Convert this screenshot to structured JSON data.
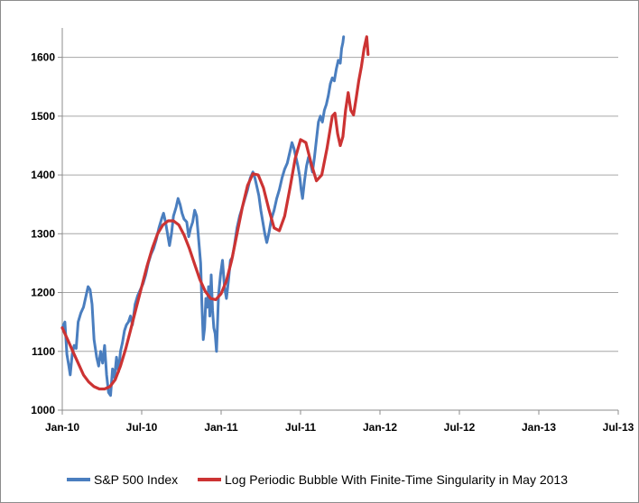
{
  "chart_data": {
    "type": "line",
    "title": "",
    "xlabel": "",
    "ylabel": "",
    "ylim": [
      1000,
      1650
    ],
    "y_ticks": [
      1000,
      1100,
      1200,
      1300,
      1400,
      1500,
      1600
    ],
    "y_tick_labels": [
      "1000",
      "1100",
      "1200",
      "1300",
      "1400",
      "1500",
      "1600"
    ],
    "x_tick_labels": [
      "Jan-10",
      "Jul-10",
      "Jan-11",
      "Jul-11",
      "Jan-12",
      "Jul-12",
      "Jan-13",
      "Jul-13"
    ],
    "grid": "horizontal",
    "legend_position": "bottom",
    "series": [
      {
        "name": "S&P 500 Index",
        "color": "#4a7ebf",
        "points": [
          [
            0,
            1140
          ],
          [
            0.2,
            1150
          ],
          [
            0.35,
            1095
          ],
          [
            0.5,
            1075
          ],
          [
            0.6,
            1060
          ],
          [
            0.75,
            1095
          ],
          [
            0.9,
            1110
          ],
          [
            1.05,
            1105
          ],
          [
            1.2,
            1150
          ],
          [
            1.4,
            1165
          ],
          [
            1.6,
            1175
          ],
          [
            1.8,
            1195
          ],
          [
            1.95,
            1210
          ],
          [
            2.1,
            1205
          ],
          [
            2.25,
            1180
          ],
          [
            2.4,
            1120
          ],
          [
            2.6,
            1090
          ],
          [
            2.75,
            1075
          ],
          [
            2.9,
            1100
          ],
          [
            3.05,
            1080
          ],
          [
            3.2,
            1110
          ],
          [
            3.35,
            1060
          ],
          [
            3.5,
            1030
          ],
          [
            3.65,
            1025
          ],
          [
            3.8,
            1070
          ],
          [
            3.95,
            1055
          ],
          [
            4.1,
            1090
          ],
          [
            4.25,
            1065
          ],
          [
            4.4,
            1100
          ],
          [
            4.55,
            1115
          ],
          [
            4.7,
            1135
          ],
          [
            4.85,
            1145
          ],
          [
            5.0,
            1150
          ],
          [
            5.15,
            1160
          ],
          [
            5.3,
            1145
          ],
          [
            5.5,
            1180
          ],
          [
            5.7,
            1195
          ],
          [
            5.9,
            1205
          ],
          [
            6.1,
            1215
          ],
          [
            6.3,
            1230
          ],
          [
            6.5,
            1250
          ],
          [
            6.7,
            1265
          ],
          [
            6.9,
            1275
          ],
          [
            7.1,
            1290
          ],
          [
            7.3,
            1310
          ],
          [
            7.5,
            1325
          ],
          [
            7.65,
            1335
          ],
          [
            7.8,
            1320
          ],
          [
            7.95,
            1300
          ],
          [
            8.1,
            1280
          ],
          [
            8.25,
            1300
          ],
          [
            8.4,
            1330
          ],
          [
            8.6,
            1345
          ],
          [
            8.75,
            1360
          ],
          [
            8.9,
            1350
          ],
          [
            9.05,
            1335
          ],
          [
            9.2,
            1325
          ],
          [
            9.4,
            1320
          ],
          [
            9.55,
            1295
          ],
          [
            9.7,
            1310
          ],
          [
            9.85,
            1320
          ],
          [
            10.0,
            1340
          ],
          [
            10.15,
            1330
          ],
          [
            10.3,
            1290
          ],
          [
            10.45,
            1250
          ],
          [
            10.55,
            1180
          ],
          [
            10.65,
            1120
          ],
          [
            10.75,
            1140
          ],
          [
            10.85,
            1190
          ],
          [
            10.95,
            1175
          ],
          [
            11.05,
            1210
          ],
          [
            11.15,
            1160
          ],
          [
            11.25,
            1230
          ],
          [
            11.35,
            1170
          ],
          [
            11.45,
            1140
          ],
          [
            11.55,
            1130
          ],
          [
            11.65,
            1100
          ],
          [
            11.8,
            1195
          ],
          [
            11.95,
            1230
          ],
          [
            12.1,
            1255
          ],
          [
            12.25,
            1210
          ],
          [
            12.4,
            1190
          ],
          [
            12.55,
            1220
          ],
          [
            12.7,
            1255
          ],
          [
            12.85,
            1260
          ],
          [
            13.0,
            1280
          ],
          [
            13.2,
            1310
          ],
          [
            13.4,
            1330
          ],
          [
            13.6,
            1345
          ],
          [
            13.8,
            1360
          ],
          [
            14.0,
            1375
          ],
          [
            14.2,
            1395
          ],
          [
            14.4,
            1405
          ],
          [
            14.55,
            1395
          ],
          [
            14.7,
            1380
          ],
          [
            14.85,
            1365
          ],
          [
            15.0,
            1340
          ],
          [
            15.15,
            1320
          ],
          [
            15.3,
            1300
          ],
          [
            15.45,
            1285
          ],
          [
            15.6,
            1300
          ],
          [
            15.8,
            1325
          ],
          [
            16.0,
            1340
          ],
          [
            16.2,
            1360
          ],
          [
            16.4,
            1375
          ],
          [
            16.6,
            1395
          ],
          [
            16.8,
            1410
          ],
          [
            17.0,
            1420
          ],
          [
            17.2,
            1440
          ],
          [
            17.35,
            1455
          ],
          [
            17.5,
            1445
          ],
          [
            17.65,
            1430
          ],
          [
            17.8,
            1415
          ],
          [
            17.95,
            1395
          ],
          [
            18.05,
            1375
          ],
          [
            18.15,
            1360
          ],
          [
            18.3,
            1390
          ],
          [
            18.45,
            1415
          ],
          [
            18.6,
            1430
          ],
          [
            18.75,
            1420
          ],
          [
            18.9,
            1405
          ],
          [
            19.05,
            1430
          ],
          [
            19.2,
            1460
          ],
          [
            19.35,
            1490
          ],
          [
            19.5,
            1500
          ],
          [
            19.65,
            1490
          ],
          [
            19.8,
            1510
          ],
          [
            19.95,
            1520
          ],
          [
            20.1,
            1535
          ],
          [
            20.25,
            1555
          ],
          [
            20.4,
            1565
          ],
          [
            20.55,
            1560
          ],
          [
            20.7,
            1580
          ],
          [
            20.85,
            1595
          ],
          [
            21.0,
            1590
          ],
          [
            21.1,
            1615
          ],
          [
            21.2,
            1625
          ],
          [
            21.25,
            1635
          ]
        ]
      },
      {
        "name": "Log Periodic Bubble With Finite-Time Singularity in May 2013",
        "color": "#cc3333",
        "points": [
          [
            0,
            1140
          ],
          [
            0.4,
            1120
          ],
          [
            0.8,
            1100
          ],
          [
            1.2,
            1080
          ],
          [
            1.6,
            1060
          ],
          [
            2.0,
            1048
          ],
          [
            2.4,
            1040
          ],
          [
            2.8,
            1036
          ],
          [
            3.2,
            1036
          ],
          [
            3.6,
            1040
          ],
          [
            4.0,
            1052
          ],
          [
            4.4,
            1075
          ],
          [
            4.8,
            1105
          ],
          [
            5.2,
            1140
          ],
          [
            5.6,
            1175
          ],
          [
            6.0,
            1210
          ],
          [
            6.4,
            1245
          ],
          [
            6.8,
            1275
          ],
          [
            7.2,
            1300
          ],
          [
            7.6,
            1315
          ],
          [
            8.0,
            1322
          ],
          [
            8.4,
            1322
          ],
          [
            8.8,
            1315
          ],
          [
            9.2,
            1298
          ],
          [
            9.6,
            1275
          ],
          [
            10.0,
            1248
          ],
          [
            10.4,
            1222
          ],
          [
            10.8,
            1202
          ],
          [
            11.2,
            1190
          ],
          [
            11.6,
            1188
          ],
          [
            12.0,
            1198
          ],
          [
            12.4,
            1220
          ],
          [
            12.8,
            1255
          ],
          [
            13.2,
            1300
          ],
          [
            13.6,
            1345
          ],
          [
            14.0,
            1382
          ],
          [
            14.4,
            1402
          ],
          [
            14.8,
            1400
          ],
          [
            15.2,
            1378
          ],
          [
            15.6,
            1342
          ],
          [
            16.0,
            1310
          ],
          [
            16.4,
            1305
          ],
          [
            16.8,
            1330
          ],
          [
            17.2,
            1378
          ],
          [
            17.6,
            1428
          ],
          [
            18.0,
            1460
          ],
          [
            18.4,
            1455
          ],
          [
            18.8,
            1420
          ],
          [
            19.2,
            1390
          ],
          [
            19.6,
            1400
          ],
          [
            20.0,
            1445
          ],
          [
            20.4,
            1500
          ],
          [
            20.6,
            1505
          ],
          [
            20.8,
            1470
          ],
          [
            21.0,
            1450
          ],
          [
            21.2,
            1465
          ],
          [
            21.4,
            1510
          ],
          [
            21.6,
            1540
          ],
          [
            21.8,
            1510
          ],
          [
            22.0,
            1502
          ],
          [
            22.2,
            1530
          ],
          [
            22.4,
            1560
          ],
          [
            22.6,
            1585
          ],
          [
            22.8,
            1615
          ],
          [
            23.0,
            1635
          ],
          [
            23.1,
            1605
          ]
        ]
      }
    ]
  }
}
